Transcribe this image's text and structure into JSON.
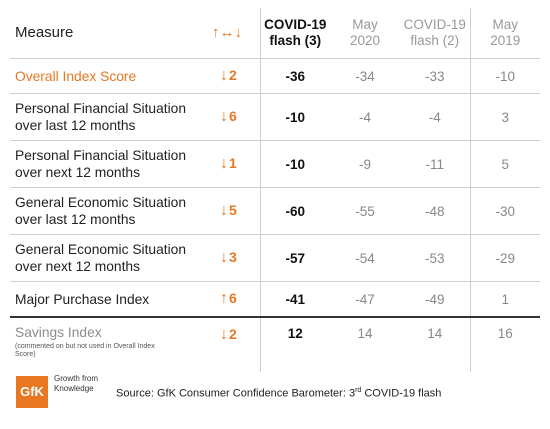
{
  "header": {
    "measure": "Measure",
    "change_icon": "↑↔↓",
    "col1_line1": "COVID-19",
    "col1_line2": "flash (3)",
    "col2_line1": "May",
    "col2_line2": "2020",
    "col3_line1": "COVID-19",
    "col3_line2": "flash (2)",
    "col4_line1": "May",
    "col4_line2": "2019"
  },
  "rows": [
    {
      "label": "Overall Index Score",
      "arrow": "↓",
      "change": "2",
      "v1": "-36",
      "v2": "-34",
      "v3": "-33",
      "v4": "-10"
    },
    {
      "label": "Personal Financial Situation over last 12 months",
      "arrow": "↓",
      "change": "6",
      "v1": "-10",
      "v2": "-4",
      "v3": "-4",
      "v4": "3"
    },
    {
      "label": "Personal Financial Situation over next 12 months",
      "arrow": "↓",
      "change": "1",
      "v1": "-10",
      "v2": "-9",
      "v3": "-11",
      "v4": "5"
    },
    {
      "label": "General Economic Situation over last 12 months",
      "arrow": "↓",
      "change": "5",
      "v1": "-60",
      "v2": "-55",
      "v3": "-48",
      "v4": "-30"
    },
    {
      "label": "General Economic Situation over next 12 months",
      "arrow": "↓",
      "change": "3",
      "v1": "-57",
      "v2": "-54",
      "v3": "-53",
      "v4": "-29"
    },
    {
      "label": "Major Purchase Index",
      "arrow": "↑",
      "change": "6",
      "v1": "-41",
      "v2": "-47",
      "v3": "-49",
      "v4": "1"
    },
    {
      "label": "Savings Index",
      "note": "(commented on but not used in Overall Index Score)",
      "arrow": "↓",
      "change": "2",
      "v1": "12",
      "v2": "14",
      "v3": "14",
      "v4": "16"
    }
  ],
  "footer": {
    "logo": "GfK",
    "tagline": "Growth from Knowledge",
    "source_prefix": "Source: GfK Consumer Confidence Barometer: 3",
    "source_sup": "rd",
    "source_suffix": " COVID-19 flash"
  },
  "colors": {
    "accent": "#e87722",
    "muted": "#888888"
  }
}
